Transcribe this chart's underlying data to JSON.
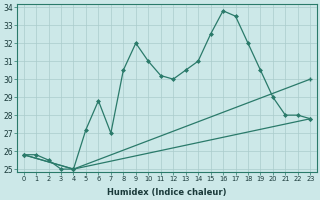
{
  "line1_x": [
    0,
    1,
    2,
    3,
    4,
    5,
    6,
    7,
    8,
    9,
    10,
    11,
    12,
    13,
    14,
    15,
    16,
    17,
    18,
    19,
    20,
    21,
    22,
    23
  ],
  "line1_y": [
    25.8,
    25.8,
    25.5,
    25.0,
    25.0,
    27.2,
    28.8,
    27.0,
    30.5,
    32.0,
    31.0,
    30.2,
    30.0,
    30.5,
    31.0,
    32.5,
    33.8,
    33.5,
    32.0,
    30.5,
    29.0,
    28.0,
    28.0,
    27.8
  ],
  "line2_x": [
    0,
    4,
    23
  ],
  "line2_y": [
    25.8,
    25.0,
    30.0
  ],
  "line3_x": [
    0,
    4,
    23
  ],
  "line3_y": [
    25.8,
    25.0,
    27.8
  ],
  "line_color": "#2a7a6a",
  "bg_color": "#cce8e8",
  "grid_color": "#aacccc",
  "xlabel": "Humidex (Indice chaleur)",
  "ylim": [
    25,
    34
  ],
  "xlim": [
    -0.5,
    23.5
  ],
  "yticks": [
    25,
    26,
    27,
    28,
    29,
    30,
    31,
    32,
    33,
    34
  ],
  "xticks": [
    0,
    1,
    2,
    3,
    4,
    5,
    6,
    7,
    8,
    9,
    10,
    11,
    12,
    13,
    14,
    15,
    16,
    17,
    18,
    19,
    20,
    21,
    22,
    23
  ]
}
